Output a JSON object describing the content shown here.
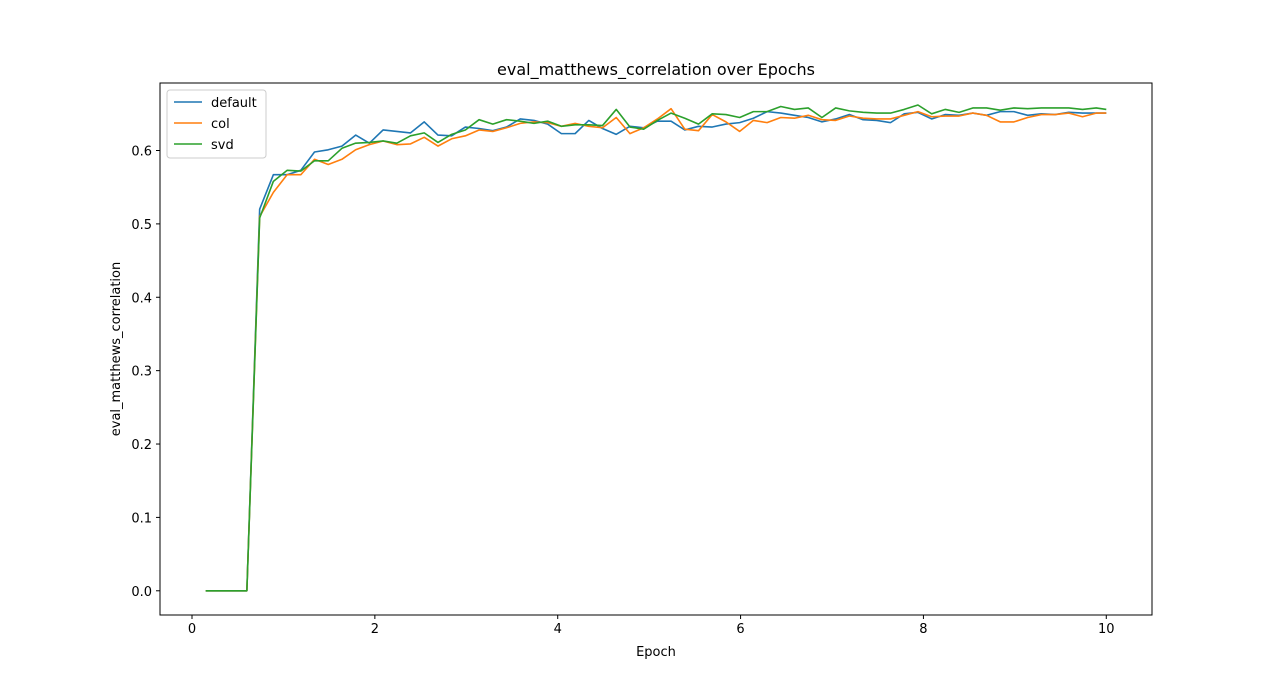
{
  "chart_data": {
    "type": "line",
    "title": "eval_matthews_correlation over Epochs",
    "xlabel": "Epoch",
    "ylabel": "eval_matthews_correlation",
    "xlim": [
      -0.35,
      10.5
    ],
    "ylim": [
      -0.033,
      0.692
    ],
    "xticks": [
      0,
      2,
      4,
      6,
      8,
      10
    ],
    "yticks": [
      0.0,
      0.1,
      0.2,
      0.3,
      0.4,
      0.5,
      0.6
    ],
    "ytick_labels": [
      "0.0",
      "0.1",
      "0.2",
      "0.3",
      "0.4",
      "0.5",
      "0.6"
    ],
    "grid": false,
    "legend_position": "upper-left",
    "x": [
      0.15,
      0.3,
      0.45,
      0.6,
      0.74,
      0.89,
      1.04,
      1.19,
      1.34,
      1.49,
      1.64,
      1.79,
      1.94,
      2.09,
      2.24,
      2.39,
      2.54,
      2.69,
      2.84,
      2.99,
      3.14,
      3.29,
      3.44,
      3.59,
      3.74,
      3.89,
      4.04,
      4.19,
      4.34,
      4.49,
      4.64,
      4.79,
      4.94,
      5.09,
      5.24,
      5.39,
      5.54,
      5.69,
      5.84,
      5.99,
      6.14,
      6.29,
      6.44,
      6.59,
      6.74,
      6.89,
      7.04,
      7.19,
      7.34,
      7.49,
      7.64,
      7.79,
      7.94,
      8.09,
      8.24,
      8.39,
      8.54,
      8.69,
      8.84,
      8.99,
      9.14,
      9.29,
      9.44,
      9.59,
      9.74,
      9.89,
      10.0
    ],
    "series": [
      {
        "name": "default",
        "color": "#1f77b4",
        "values": [
          0.0,
          0.0,
          0.0,
          0.0,
          0.52,
          0.567,
          0.567,
          0.573,
          0.598,
          0.601,
          0.606,
          0.621,
          0.61,
          0.628,
          0.626,
          0.624,
          0.639,
          0.621,
          0.62,
          0.632,
          0.63,
          0.627,
          0.632,
          0.643,
          0.641,
          0.636,
          0.623,
          0.623,
          0.641,
          0.63,
          0.622,
          0.633,
          0.631,
          0.64,
          0.64,
          0.628,
          0.633,
          0.632,
          0.636,
          0.638,
          0.644,
          0.653,
          0.651,
          0.648,
          0.645,
          0.639,
          0.643,
          0.649,
          0.642,
          0.641,
          0.638,
          0.65,
          0.652,
          0.643,
          0.649,
          0.648,
          0.651,
          0.648,
          0.653,
          0.653,
          0.648,
          0.65,
          0.649,
          0.652,
          0.651,
          0.651,
          0.651
        ]
      },
      {
        "name": "col",
        "color": "#ff7f0e",
        "values": [
          0.0,
          0.0,
          0.0,
          0.0,
          0.51,
          0.543,
          0.567,
          0.567,
          0.588,
          0.581,
          0.588,
          0.601,
          0.608,
          0.613,
          0.608,
          0.609,
          0.618,
          0.606,
          0.616,
          0.62,
          0.628,
          0.626,
          0.631,
          0.637,
          0.639,
          0.638,
          0.633,
          0.637,
          0.633,
          0.631,
          0.645,
          0.623,
          0.631,
          0.643,
          0.657,
          0.629,
          0.627,
          0.649,
          0.639,
          0.626,
          0.641,
          0.638,
          0.645,
          0.644,
          0.648,
          0.642,
          0.641,
          0.647,
          0.644,
          0.643,
          0.643,
          0.648,
          0.653,
          0.646,
          0.647,
          0.647,
          0.651,
          0.648,
          0.639,
          0.639,
          0.645,
          0.649,
          0.649,
          0.651,
          0.646,
          0.651,
          0.651
        ]
      },
      {
        "name": "svd",
        "color": "#2ca02c",
        "values": [
          0.0,
          0.0,
          0.0,
          0.0,
          0.508,
          0.558,
          0.573,
          0.572,
          0.586,
          0.586,
          0.603,
          0.61,
          0.611,
          0.613,
          0.61,
          0.62,
          0.624,
          0.611,
          0.622,
          0.628,
          0.642,
          0.636,
          0.642,
          0.64,
          0.637,
          0.64,
          0.633,
          0.635,
          0.635,
          0.634,
          0.656,
          0.632,
          0.629,
          0.641,
          0.651,
          0.644,
          0.636,
          0.65,
          0.649,
          0.645,
          0.653,
          0.653,
          0.66,
          0.656,
          0.658,
          0.645,
          0.658,
          0.654,
          0.652,
          0.651,
          0.651,
          0.656,
          0.662,
          0.65,
          0.656,
          0.652,
          0.658,
          0.658,
          0.655,
          0.658,
          0.657,
          0.658,
          0.658,
          0.658,
          0.656,
          0.658,
          0.656
        ]
      }
    ]
  }
}
